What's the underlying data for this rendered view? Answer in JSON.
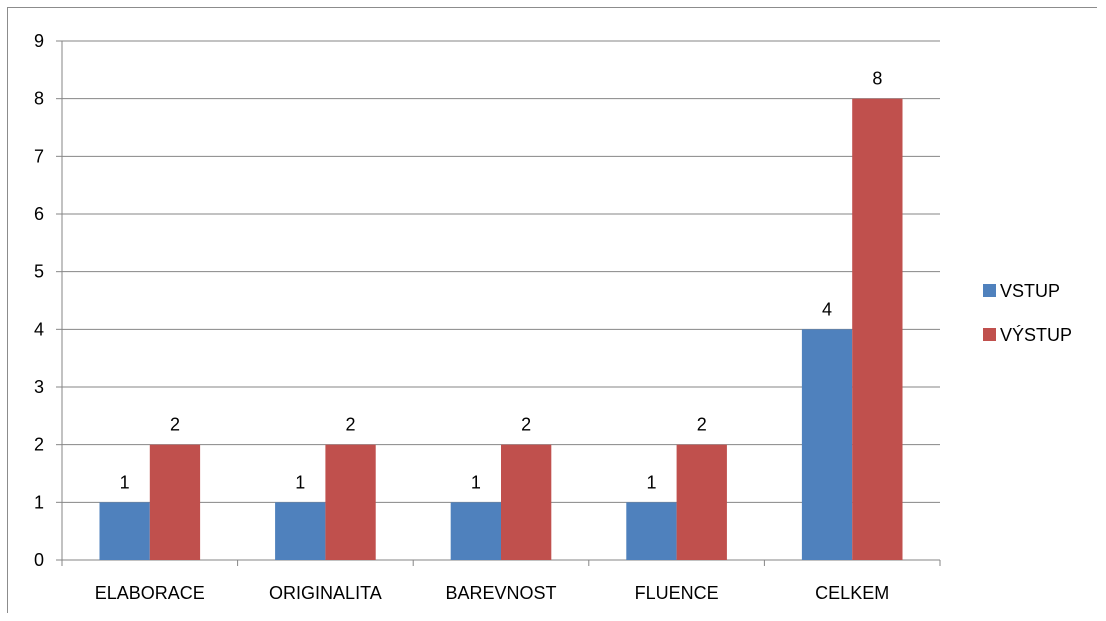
{
  "chart_data": {
    "type": "bar",
    "categories": [
      "ELABORACE",
      "ORIGINALITA",
      "BAREVNOST",
      "FLUENCE",
      "CELKEM"
    ],
    "series": [
      {
        "name": "VSTUP",
        "values": [
          1,
          1,
          1,
          1,
          4
        ],
        "color": "#4f81bd"
      },
      {
        "name": "VÝSTUP",
        "values": [
          2,
          2,
          2,
          2,
          8
        ],
        "color": "#c0504d"
      }
    ],
    "ylim": [
      0,
      9
    ],
    "yticks": [
      0,
      1,
      2,
      3,
      4,
      5,
      6,
      7,
      8,
      9
    ],
    "grid": true,
    "data_labels": true,
    "legend_position": "right"
  }
}
